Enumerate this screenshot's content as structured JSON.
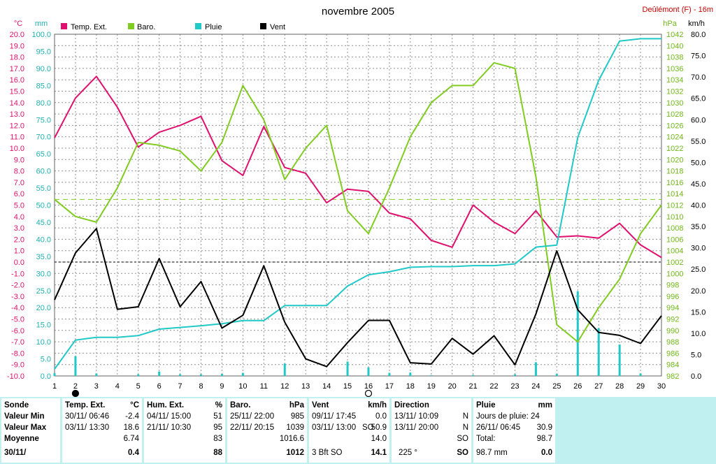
{
  "chart_data": {
    "type": "line",
    "title": "novembre 2005",
    "station": "Deûlémont (F) - 16m",
    "x": [
      1,
      2,
      3,
      4,
      5,
      6,
      7,
      8,
      9,
      10,
      11,
      12,
      13,
      14,
      15,
      16,
      17,
      18,
      19,
      20,
      21,
      22,
      23,
      24,
      25,
      26,
      27,
      28,
      29,
      30
    ],
    "units": {
      "left_temp": "°C",
      "left_mm": "mm",
      "right_hpa": "hPa",
      "right_kmh": "km/h"
    },
    "axes": {
      "temp": {
        "ylim": [
          -10,
          20
        ],
        "ticks": [
          "20.0",
          "19.0",
          "18.0",
          "17.0",
          "16.0",
          "15.0",
          "14.0",
          "13.0",
          "12.0",
          "11.0",
          "10.0",
          "9.0",
          "8.0",
          "7.0",
          "6.0",
          "5.0",
          "4.0",
          "3.0",
          "2.0",
          "1.0",
          "0.0",
          "-1.0",
          "-2.0",
          "-3.0",
          "-4.0",
          "-5.0",
          "-6.0",
          "-7.0",
          "-8.0",
          "-9.0",
          "-10.0"
        ]
      },
      "mm": {
        "ylim": [
          0,
          100
        ],
        "ticks": [
          "100.0",
          "95.0",
          "90.0",
          "85.0",
          "80.0",
          "75.0",
          "70.0",
          "65.0",
          "60.0",
          "55.0",
          "50.0",
          "45.0",
          "40.0",
          "35.0",
          "30.0",
          "25.0",
          "20.0",
          "15.0",
          "10.0",
          "5.0",
          "0.0"
        ]
      },
      "hpa": {
        "ylim": [
          982,
          1042
        ],
        "ticks": [
          "1042",
          "1040",
          "1038",
          "1036",
          "1034",
          "1032",
          "1030",
          "1028",
          "1026",
          "1024",
          "1022",
          "1020",
          "1018",
          "1016",
          "1014",
          "1012",
          "1010",
          "1008",
          "1006",
          "1004",
          "1002",
          "1000",
          "998",
          "996",
          "994",
          "992",
          "990",
          "988",
          "986",
          "984",
          "982"
        ]
      },
      "kmh": {
        "ylim": [
          0,
          80
        ],
        "ticks": [
          "80.0",
          "75.0",
          "70.0",
          "65.0",
          "60.0",
          "55.0",
          "50.0",
          "45.0",
          "40.0",
          "35.0",
          "30.0",
          "25.0",
          "20.0",
          "15.0",
          "10.0",
          "5.0",
          "0.0"
        ]
      }
    },
    "series": [
      {
        "name": "Temp. Ext.",
        "axis": "temp",
        "color": "#e0106e",
        "values": [
          10.9,
          14.4,
          16.3,
          13.6,
          10.1,
          11.4,
          12.0,
          12.8,
          8.9,
          7.6,
          11.9,
          8.3,
          7.8,
          5.2,
          6.4,
          6.2,
          4.3,
          3.8,
          1.9,
          1.3,
          5.0,
          3.5,
          2.5,
          4.5,
          2.2,
          2.3,
          2.1,
          3.4,
          1.5,
          0.4
        ]
      },
      {
        "name": "Baro.",
        "axis": "hpa",
        "color": "#80cc20",
        "values": [
          1013,
          1010,
          1009,
          1015,
          1023,
          1022.5,
          1021.5,
          1018,
          1023,
          1033,
          1027,
          1016.5,
          1022,
          1026,
          1011,
          1007,
          1015,
          1024,
          1030,
          1033,
          1033,
          1037,
          1036,
          1017,
          991,
          988,
          994,
          999,
          1007,
          1012
        ]
      },
      {
        "name": "Pluie",
        "axis": "mm",
        "color": "#20c8c8",
        "values": [
          2.0,
          10.5,
          11.3,
          11.3,
          11.8,
          13.7,
          14.2,
          14.7,
          15.3,
          16.2,
          16.2,
          20.6,
          20.6,
          20.6,
          26.3,
          29.6,
          30.5,
          31.8,
          32.0,
          32.0,
          32.3,
          32.3,
          32.8,
          37.7,
          38.3,
          69.8,
          86.5,
          98.0,
          98.7,
          98.7
        ]
      },
      {
        "name": "Vent",
        "axis": "kmh",
        "color": "#000000",
        "values": [
          17.8,
          28.8,
          34.5,
          15.6,
          16.2,
          27.5,
          16.2,
          22.1,
          11.2,
          14.2,
          25.8,
          12.6,
          4.0,
          2.2,
          7.8,
          13.0,
          13.0,
          3.1,
          2.8,
          8.8,
          5.1,
          9.4,
          2.6,
          14.5,
          29.3,
          15.5,
          10.2,
          9.5,
          7.6,
          14.1
        ]
      }
    ],
    "daily_rain_mm": [
      0.8,
      5.8,
      0.7,
      0.0,
      0.5,
      1.3,
      0.5,
      0.5,
      0.6,
      0.9,
      0.0,
      3.6,
      0.0,
      0.0,
      4.2,
      2.5,
      0.9,
      1.0,
      0.2,
      0.0,
      0.3,
      0.0,
      0.5,
      4.0,
      0.6,
      24.8,
      14.0,
      9.2,
      0.7,
      0.0
    ],
    "baro_reference_hpa": 1013,
    "temp_zero_line": 0.0,
    "moon_phases": [
      {
        "day": 2,
        "phase": "new-moon"
      },
      {
        "day": 16,
        "phase": "full-moon"
      }
    ],
    "grid": true,
    "legend_position": "top"
  },
  "table": {
    "sonde": {
      "header": "Sonde",
      "rows": [
        "Valeur Min",
        "Valeur Max",
        "Moyenne"
      ],
      "date": "30/11/"
    },
    "temp": {
      "header": "Temp. Ext.",
      "unit": "°C",
      "min_time": "30/11/  06:46",
      "min": "-2.4",
      "max_time": "03/11/  13:30",
      "max": "18.6",
      "mean": "6.74",
      "current": "0.4"
    },
    "hum": {
      "header": "Hum. Ext.",
      "unit": "%",
      "min_time": "04/11/  15:00",
      "min": "51",
      "max_time": "21/11/  10:30",
      "max": "95",
      "mean": "83",
      "current": "88"
    },
    "baro": {
      "header": "Baro.",
      "unit": "hPa",
      "min_time": "25/11/  22:00",
      "min": "985",
      "max_time": "22/11/  20:15",
      "max": "1039",
      "mean": "1016.6",
      "current": "1012"
    },
    "vent": {
      "header": "Vent",
      "unit": "km/h",
      "min_time": "09/11/  17:45",
      "min": "0.0",
      "max_time": "03/11/  13:00",
      "max_dir": "SO",
      "max": "50.9",
      "mean": "14.0",
      "current_label": "3 Bft SO",
      "current": "14.1"
    },
    "direction": {
      "header": "Direction",
      "min_time": "13/11/  10:09",
      "min": "N",
      "max_time": "13/11/  20:00",
      "max": "N",
      "mean": "SO",
      "current_deg": "225 °",
      "current": "SO"
    },
    "pluie": {
      "header": "Pluie",
      "unit": "mm",
      "days": "Jours de pluie: 24",
      "max_time": "26/11/  06:45",
      "max": "30.9",
      "total_label": "Total:",
      "total": "98.7",
      "current_total": "98.7 mm",
      "current": "0.0"
    }
  }
}
